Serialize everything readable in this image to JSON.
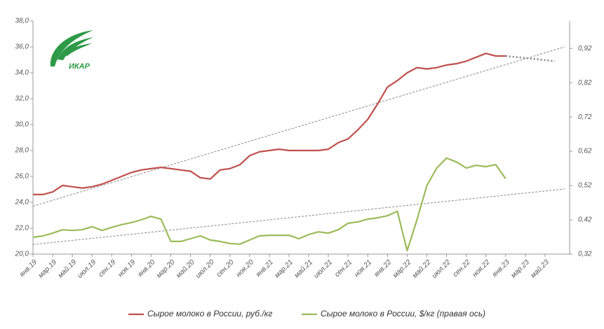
{
  "logo": "ИКАР",
  "chart_data": {
    "type": "line",
    "categories": [
      "янв.19",
      null,
      "мар.19",
      null,
      "май.19",
      null,
      "июл.19",
      null,
      "сен.19",
      null,
      "ноя.19",
      null,
      "янв.20",
      null,
      "мар.20",
      null,
      "май.20",
      null,
      "июл.20",
      null,
      "сен.20",
      null,
      "ноя.20",
      null,
      "янв.21",
      null,
      "мар.21",
      null,
      "май.21",
      null,
      "июл.21",
      null,
      "сен.21",
      null,
      "ноя.21",
      null,
      "янв.22",
      null,
      "мар.22",
      null,
      "май.22",
      null,
      "июл.22",
      null,
      "сен.22",
      null,
      "ноя.22",
      null,
      "янв.23",
      null,
      "мар.23",
      null,
      "май.23",
      null,
      null
    ],
    "ylim": [
      20,
      38
    ],
    "yticks": [
      {
        "value": 20,
        "label": "20,0"
      },
      {
        "value": 22,
        "label": "22,0"
      },
      {
        "value": 24,
        "label": "24,0"
      },
      {
        "value": 26,
        "label": "26,0"
      },
      {
        "value": 28,
        "label": "28,0"
      },
      {
        "value": 30,
        "label": "30,0"
      },
      {
        "value": 32,
        "label": "32,0"
      },
      {
        "value": 34,
        "label": "34,0"
      },
      {
        "value": 36,
        "label": "36,0"
      },
      {
        "value": 38,
        "label": "38,0"
      }
    ],
    "y2lim": [
      0.32,
      1.0
    ],
    "y2ticks": [
      {
        "value": 0.32,
        "label": "0,32"
      },
      {
        "value": 0.42,
        "label": "0,42"
      },
      {
        "value": 0.52,
        "label": "0,52"
      },
      {
        "value": 0.62,
        "label": "0,62"
      },
      {
        "value": 0.72,
        "label": "0,72"
      },
      {
        "value": 0.82,
        "label": "0,82"
      },
      {
        "value": 0.92,
        "label": "0,92"
      }
    ],
    "series": [
      {
        "name": "Сырое молоко в России, руб./кг",
        "color": "#c0504d",
        "axis": "y",
        "values": [
          24.6,
          24.6,
          24.8,
          25.3,
          25.2,
          25.1,
          25.2,
          25.4,
          25.7,
          26.0,
          26.3,
          26.5,
          26.6,
          26.7,
          26.6,
          26.5,
          26.4,
          25.9,
          25.8,
          26.5,
          26.6,
          26.9,
          27.6,
          27.9,
          28.0,
          28.1,
          28.0,
          28.0,
          28.0,
          28.0,
          28.1,
          28.6,
          28.9,
          29.6,
          30.4,
          31.6,
          32.9,
          33.4,
          34.0,
          34.4,
          34.3,
          34.4,
          34.6,
          34.7,
          34.9,
          35.2,
          35.5,
          35.3,
          35.3,
          null,
          null,
          null,
          null,
          null,
          null
        ]
      },
      {
        "name": "Сырое молоко в России, $/кг (правая ось)",
        "color": "#9bbb59",
        "axis": "y2",
        "values": [
          0.369,
          0.373,
          0.381,
          0.391,
          0.389,
          0.391,
          0.4,
          0.389,
          0.398,
          0.406,
          0.412,
          0.42,
          0.43,
          0.422,
          0.357,
          0.357,
          0.365,
          0.373,
          0.361,
          0.357,
          0.351,
          0.349,
          0.361,
          0.373,
          0.375,
          0.375,
          0.375,
          0.365,
          0.377,
          0.385,
          0.381,
          0.391,
          0.41,
          0.414,
          0.422,
          0.426,
          0.432,
          0.445,
          0.33,
          0.42,
          0.52,
          0.571,
          0.6,
          0.589,
          0.571,
          0.579,
          0.575,
          0.581,
          0.54,
          null,
          null,
          null,
          null,
          null,
          null
        ]
      }
    ],
    "forecast": {
      "color": "#808080",
      "axis": "y",
      "values": [
        null,
        null,
        null,
        null,
        null,
        null,
        null,
        null,
        null,
        null,
        null,
        null,
        null,
        null,
        null,
        null,
        null,
        null,
        null,
        null,
        null,
        null,
        null,
        null,
        null,
        null,
        null,
        null,
        null,
        null,
        null,
        null,
        null,
        null,
        null,
        null,
        null,
        null,
        null,
        null,
        null,
        null,
        null,
        null,
        null,
        null,
        null,
        null,
        35.3,
        35.22,
        35.14,
        35.06,
        34.98,
        34.9,
        null
      ]
    },
    "trendlines": [
      {
        "axis": "y",
        "color": "#888888",
        "start": 23.7,
        "end": 36.0
      },
      {
        "axis": "y2",
        "color": "#888888",
        "start": 0.348,
        "end": 0.51
      }
    ],
    "legend": "bottom"
  }
}
